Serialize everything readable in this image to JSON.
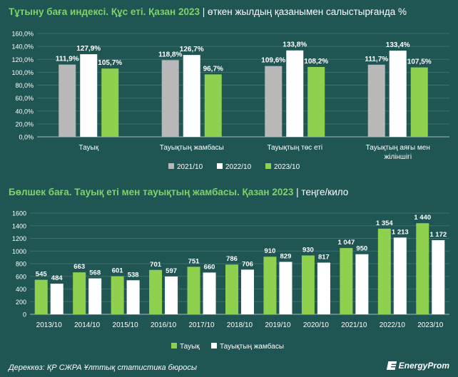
{
  "chart1": {
    "title_main": "Тұтыну бағa индексі. Құс еті. Қазан 2023",
    "title_sub": "өткен жылдың қазанымен салыстырғанда %",
    "chart_data": {
      "type": "bar",
      "categories": [
        "Тауық",
        "Тауықтың жамбасы",
        "Тауықтың төс еті",
        "Тауықтың аяғы мен жіліншігі"
      ],
      "category_lines": [
        [
          "Тауық"
        ],
        [
          "Тауықтың жамбасы"
        ],
        [
          "Тауықтың төс еті"
        ],
        [
          "Тауықтың аяғы мен",
          "жіліншігі"
        ]
      ],
      "series": [
        {
          "name": "2021/10",
          "values": [
            111.9,
            118.8,
            109.6,
            111.7
          ],
          "labels": [
            "111,9%",
            "118,8%",
            "109,6%",
            "111,7%"
          ]
        },
        {
          "name": "2022/10",
          "values": [
            127.9,
            126.7,
            133.8,
            133.4
          ],
          "labels": [
            "127,9%",
            "126,7%",
            "133,8%",
            "133,4%"
          ]
        },
        {
          "name": "2023/10",
          "values": [
            105.7,
            96.7,
            108.2,
            107.5
          ],
          "labels": [
            "105,7%",
            "96,7%",
            "108,2%",
            "107,5%"
          ]
        }
      ],
      "ylim": [
        0,
        160
      ],
      "yticks": [
        0,
        20,
        40,
        60,
        80,
        100,
        120,
        140,
        160
      ],
      "ytick_labels": [
        "0,0%",
        "20,0%",
        "40,0%",
        "60,0%",
        "80,0%",
        "100,0%",
        "120,0%",
        "140,0%",
        "160,0%"
      ],
      "grid": true,
      "legend_position": "bottom",
      "colors": [
        "#b8b8b8",
        "#ffffff",
        "#8fd14f"
      ]
    }
  },
  "chart2": {
    "title_main": "Бөлшек баға. Тауық еті мен тауықтың жамбасы. Қазан 2023",
    "title_sub": "теңге/кило",
    "chart_data": {
      "type": "bar",
      "categories": [
        "2013/10",
        "2014/10",
        "2015/10",
        "2016/10",
        "2017/10",
        "2018/10",
        "2019/10",
        "2020/10",
        "2021/10",
        "2022/10",
        "2023/10"
      ],
      "series": [
        {
          "name": "Тауық",
          "values": [
            545,
            663,
            601,
            701,
            751,
            786,
            910,
            930,
            1047,
            1354,
            1440
          ],
          "labels": [
            "545",
            "663",
            "601",
            "701",
            "751",
            "786",
            "910",
            "930",
            "1 047",
            "1 354",
            "1 440"
          ]
        },
        {
          "name": "Тауықтың жамбасы",
          "values": [
            484,
            568,
            538,
            597,
            660,
            706,
            829,
            817,
            950,
            1213,
            1172
          ],
          "labels": [
            "484",
            "568",
            "538",
            "597",
            "660",
            "706",
            "829",
            "817",
            "950",
            "1 213",
            "1 172"
          ]
        }
      ],
      "ylim": [
        0,
        1600
      ],
      "yticks": [
        0,
        200,
        400,
        600,
        800,
        1000,
        1200,
        1400,
        1600
      ],
      "ytick_labels": [
        "0",
        "200",
        "400",
        "600",
        "800",
        "1000",
        "1200",
        "1400",
        "1600"
      ],
      "grid": true,
      "legend_position": "bottom",
      "colors": [
        "#8fd14f",
        "#ffffff"
      ]
    }
  },
  "footer": {
    "source": "Дереккөз: ҚР СЖРА Ұлттық статистика бюросы",
    "logo": "EnergyProm"
  }
}
